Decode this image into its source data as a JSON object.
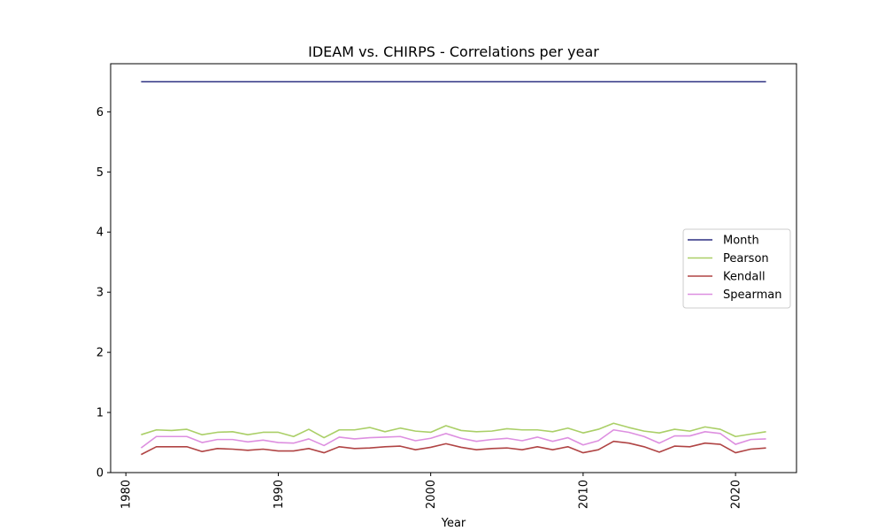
{
  "chart_data": {
    "type": "line",
    "title": "IDEAM vs. CHIRPS - Correlations per year",
    "xlabel": "Year",
    "ylabel": "",
    "xlim": [
      1979,
      2024
    ],
    "ylim": [
      0,
      6.8
    ],
    "xticks": [
      1980,
      1990,
      2000,
      2010,
      2020
    ],
    "yticks": [
      0,
      1,
      2,
      3,
      4,
      5,
      6
    ],
    "x": [
      1981,
      1982,
      1983,
      1984,
      1985,
      1986,
      1987,
      1988,
      1989,
      1990,
      1991,
      1992,
      1993,
      1994,
      1995,
      1996,
      1997,
      1998,
      1999,
      2000,
      2001,
      2002,
      2003,
      2004,
      2005,
      2006,
      2007,
      2008,
      2009,
      2010,
      2011,
      2012,
      2013,
      2014,
      2015,
      2016,
      2017,
      2018,
      2019,
      2020,
      2021,
      2022
    ],
    "series": [
      {
        "name": "Month",
        "color": "#2b2f80",
        "values": [
          6.5,
          6.5,
          6.5,
          6.5,
          6.5,
          6.5,
          6.5,
          6.5,
          6.5,
          6.5,
          6.5,
          6.5,
          6.5,
          6.5,
          6.5,
          6.5,
          6.5,
          6.5,
          6.5,
          6.5,
          6.5,
          6.5,
          6.5,
          6.5,
          6.5,
          6.5,
          6.5,
          6.5,
          6.5,
          6.5,
          6.5,
          6.5,
          6.5,
          6.5,
          6.5,
          6.5,
          6.5,
          6.5,
          6.5,
          6.5,
          6.5,
          6.5
        ]
      },
      {
        "name": "Pearson",
        "color": "#aacf67",
        "values": [
          0.63,
          0.71,
          0.7,
          0.72,
          0.63,
          0.67,
          0.68,
          0.63,
          0.67,
          0.67,
          0.6,
          0.72,
          0.58,
          0.71,
          0.71,
          0.75,
          0.68,
          0.74,
          0.69,
          0.67,
          0.78,
          0.7,
          0.68,
          0.69,
          0.73,
          0.71,
          0.71,
          0.68,
          0.74,
          0.66,
          0.72,
          0.82,
          0.75,
          0.69,
          0.66,
          0.72,
          0.69,
          0.76,
          0.72,
          0.6,
          0.64,
          0.68
        ]
      },
      {
        "name": "Kendall",
        "color": "#b04444",
        "values": [
          0.3,
          0.43,
          0.43,
          0.43,
          0.35,
          0.4,
          0.39,
          0.37,
          0.39,
          0.36,
          0.36,
          0.4,
          0.33,
          0.43,
          0.4,
          0.41,
          0.43,
          0.44,
          0.38,
          0.42,
          0.48,
          0.42,
          0.38,
          0.4,
          0.41,
          0.38,
          0.43,
          0.38,
          0.43,
          0.33,
          0.38,
          0.52,
          0.49,
          0.43,
          0.34,
          0.44,
          0.43,
          0.49,
          0.47,
          0.33,
          0.39,
          0.41
        ]
      },
      {
        "name": "Spearman",
        "color": "#dd8fe0",
        "values": [
          0.41,
          0.6,
          0.6,
          0.6,
          0.5,
          0.55,
          0.55,
          0.51,
          0.54,
          0.5,
          0.49,
          0.56,
          0.45,
          0.59,
          0.56,
          0.58,
          0.59,
          0.6,
          0.53,
          0.57,
          0.65,
          0.57,
          0.52,
          0.55,
          0.57,
          0.53,
          0.59,
          0.52,
          0.58,
          0.46,
          0.53,
          0.71,
          0.67,
          0.6,
          0.49,
          0.61,
          0.61,
          0.68,
          0.65,
          0.47,
          0.55,
          0.56
        ]
      }
    ],
    "legend": {
      "position": "center-right",
      "labels": [
        "Month",
        "Pearson",
        "Kendall",
        "Spearman"
      ]
    },
    "grid": false
  }
}
